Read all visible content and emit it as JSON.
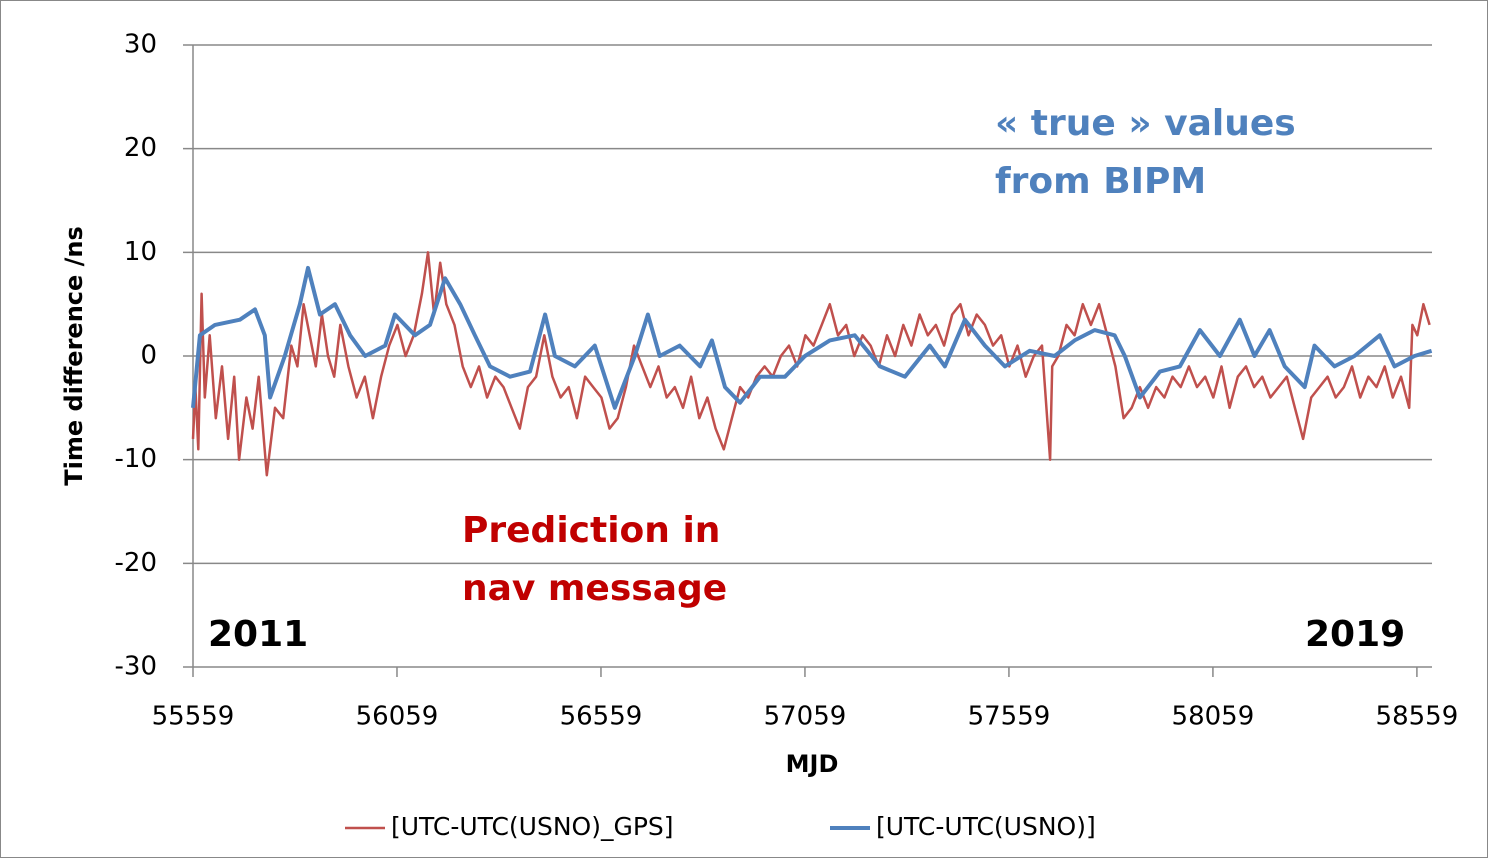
{
  "chart_data": {
    "type": "line",
    "xlabel": "MJD",
    "ylabel": "Time difference /ns",
    "xlim": [
      55559,
      58596
    ],
    "xticks": [
      55559,
      56059,
      56559,
      57059,
      57559,
      58059,
      58559
    ],
    "ylim": [
      -30,
      30
    ],
    "yticks": [
      -30,
      -20,
      -10,
      0,
      10,
      20,
      30
    ],
    "grid": true,
    "legend": "bottom",
    "annotations": [
      "« true » values",
      "from BIPM",
      "Prediction in",
      "nav message",
      "2011",
      "2019"
    ],
    "series": [
      {
        "name": "[UTC-UTC(USNO)_GPS]",
        "color": "#c0504d",
        "x": [
          55559,
          55565,
          55572,
          55580,
          55588,
          55600,
          55615,
          55630,
          55645,
          55660,
          55672,
          55690,
          55705,
          55720,
          55740,
          55760,
          55780,
          55800,
          55815,
          55830,
          55845,
          55860,
          55875,
          55890,
          55905,
          55920,
          55940,
          55960,
          55980,
          56000,
          56020,
          56040,
          56060,
          56080,
          56100,
          56120,
          56135,
          56150,
          56165,
          56180,
          56200,
          56220,
          56240,
          56260,
          56280,
          56300,
          56320,
          56340,
          56360,
          56380,
          56400,
          56420,
          56440,
          56460,
          56480,
          56500,
          56520,
          56540,
          56560,
          56580,
          56600,
          56620,
          56640,
          56660,
          56680,
          56700,
          56720,
          56740,
          56760,
          56780,
          56800,
          56820,
          56840,
          56860,
          56880,
          56900,
          56920,
          56940,
          56960,
          56980,
          57000,
          57020,
          57040,
          57060,
          57080,
          57100,
          57120,
          57140,
          57160,
          57180,
          57200,
          57220,
          57240,
          57260,
          57280,
          57300,
          57320,
          57340,
          57360,
          57380,
          57400,
          57420,
          57440,
          57460,
          57480,
          57500,
          57520,
          57540,
          57560,
          57580,
          57600,
          57620,
          57640,
          57660,
          57665,
          57680,
          57700,
          57720,
          57740,
          57760,
          57780,
          57800,
          57820,
          57840,
          57860,
          57880,
          57900,
          57920,
          57940,
          57960,
          57980,
          58000,
          58020,
          58040,
          58060,
          58080,
          58100,
          58120,
          58140,
          58160,
          58180,
          58200,
          58220,
          58240,
          58260,
          58280,
          58300,
          58320,
          58340,
          58360,
          58380,
          58400,
          58420,
          58440,
          58460,
          58480,
          58500,
          58520,
          58540,
          58548,
          58560,
          58575,
          58590
        ],
        "values": [
          -8,
          -3,
          -9,
          6,
          -4,
          2,
          -6,
          -1,
          -8,
          -2,
          -10,
          -4,
          -7,
          -2,
          -11.5,
          -5,
          -6,
          1,
          -1,
          5,
          2,
          -1,
          4,
          0,
          -2,
          3,
          -1,
          -4,
          -2,
          -6,
          -2,
          1,
          3,
          0,
          2,
          6,
          10,
          4,
          9,
          5,
          3,
          -1,
          -3,
          -1,
          -4,
          -2,
          -3,
          -5,
          -7,
          -3,
          -2,
          2,
          -2,
          -4,
          -3,
          -6,
          -2,
          -3,
          -4,
          -7,
          -6,
          -3,
          1,
          -1,
          -3,
          -1,
          -4,
          -3,
          -5,
          -2,
          -6,
          -4,
          -7,
          -9,
          -6,
          -3,
          -4,
          -2,
          -1,
          -2,
          0,
          1,
          -1,
          2,
          1,
          3,
          5,
          2,
          3,
          0,
          2,
          1,
          -1,
          2,
          0,
          3,
          1,
          4,
          2,
          3,
          1,
          4,
          5,
          2,
          4,
          3,
          1,
          2,
          -1,
          1,
          -2,
          0,
          1,
          -10,
          -1,
          0,
          3,
          2,
          5,
          3,
          5,
          2,
          -1,
          -6,
          -5,
          -3,
          -5,
          -3,
          -4,
          -2,
          -3,
          -1,
          -3,
          -2,
          -4,
          -1,
          -5,
          -2,
          -1,
          -3,
          -2,
          -4,
          -3,
          -2,
          -5,
          -8,
          -4,
          -3,
          -2,
          -4,
          -3,
          -1,
          -4,
          -2,
          -3,
          -1,
          -4,
          -2,
          -5,
          3,
          2,
          5,
          3
        ]
      },
      {
        "name": "[UTC-UTC(USNO)]",
        "color": "#4f81bd",
        "x": [
          55559,
          55576,
          55613,
          55674,
          55711,
          55735,
          55748,
          55784,
          55821,
          55841,
          55870,
          55907,
          55944,
          55981,
          56030,
          56054,
          56103,
          56140,
          56177,
          56214,
          56250,
          56287,
          56336,
          56385,
          56422,
          56446,
          56495,
          56544,
          56593,
          56642,
          56674,
          56703,
          56752,
          56802,
          56831,
          56863,
          56900,
          56949,
          57010,
          57059,
          57120,
          57181,
          57243,
          57304,
          57365,
          57402,
          57451,
          57500,
          57549,
          57610,
          57671,
          57720,
          57769,
          57818,
          57843,
          57880,
          57929,
          57978,
          58027,
          58076,
          58125,
          58161,
          58198,
          58235,
          58284,
          58308,
          58357,
          58406,
          58468,
          58504,
          58553,
          58595
        ],
        "values": [
          -5,
          2,
          3,
          3.5,
          4.5,
          2,
          -4,
          0,
          5,
          8.5,
          4,
          5,
          2,
          0,
          1,
          4,
          2,
          3,
          7.5,
          5,
          2,
          -1,
          -2,
          -1.5,
          4,
          0,
          -1,
          1,
          -5,
          0,
          4,
          0,
          1,
          -1,
          1.5,
          -3,
          -4.5,
          -2,
          -2,
          0,
          1.5,
          2,
          -1,
          -2,
          1,
          -1,
          3.5,
          1,
          -1,
          0.5,
          0,
          1.5,
          2.5,
          2,
          0,
          -4,
          -1.5,
          -1,
          2.5,
          0,
          3.5,
          0,
          2.5,
          -1,
          -3,
          1,
          -1,
          0,
          2,
          -1,
          0,
          0.5
        ]
      }
    ]
  }
}
